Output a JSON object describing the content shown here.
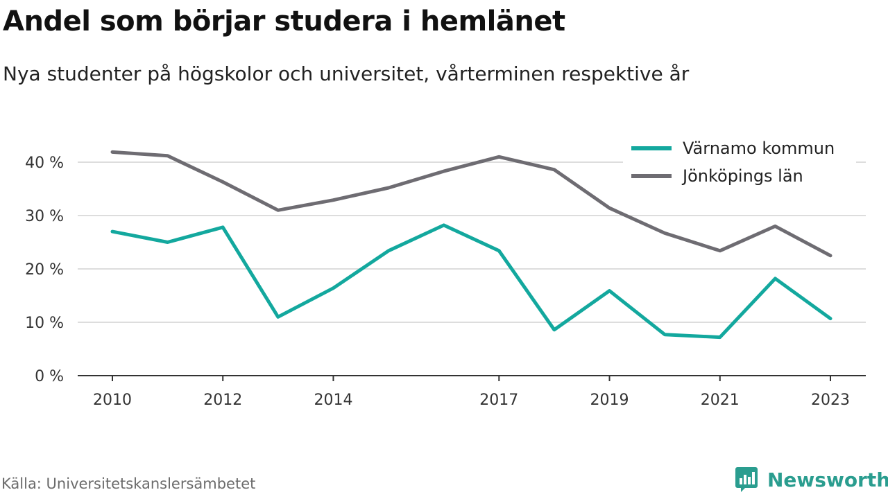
{
  "title": "Andel som börjar studera i hemlänet",
  "subtitle": "Nya studenter på högskolor och universitet, vårterminen respektive år",
  "source": "Källa: Universitetskanslersämbetet",
  "brand": {
    "name": "Newsworthy",
    "color": "#2a9d8f",
    "icon": "bar-chart-speech-bubble-icon"
  },
  "chart_data": {
    "type": "line",
    "title": "Andel som börjar studera i hemlänet",
    "xlabel": "",
    "ylabel": "",
    "x": [
      2010,
      2011,
      2012,
      2013,
      2014,
      2015,
      2016,
      2017,
      2018,
      2019,
      2020,
      2021,
      2022,
      2023
    ],
    "x_ticks": [
      2010,
      2012,
      2014,
      2017,
      2019,
      2021,
      2023
    ],
    "y_ticks": [
      0,
      10,
      20,
      30,
      40
    ],
    "y_tick_labels": [
      "0 %",
      "10 %",
      "20 %",
      "30 %",
      "40 %"
    ],
    "xlim": [
      2010,
      2023
    ],
    "ylim": [
      0,
      45
    ],
    "grid": "horizontal",
    "legend_position": "top-right",
    "series": [
      {
        "name": "Värnamo kommun",
        "color": "#13a89e",
        "values": [
          27.0,
          25.0,
          27.8,
          11.0,
          16.4,
          23.4,
          28.2,
          23.4,
          8.6,
          15.9,
          7.7,
          7.2,
          18.2,
          10.7
        ]
      },
      {
        "name": "Jönköpings län",
        "color": "#6e6c72",
        "values": [
          41.9,
          41.2,
          36.3,
          31.0,
          32.9,
          35.2,
          38.3,
          41.0,
          38.6,
          31.4,
          26.7,
          23.4,
          28.0,
          22.5
        ]
      }
    ]
  }
}
